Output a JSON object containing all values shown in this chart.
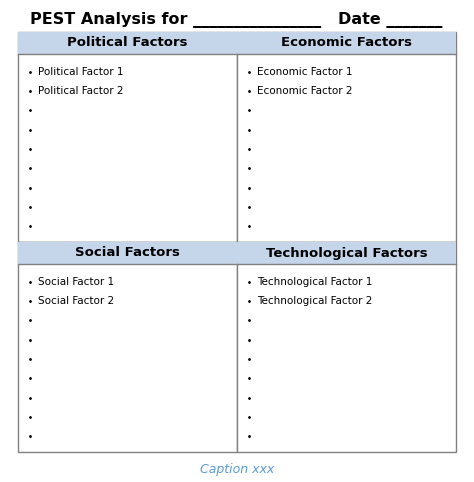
{
  "title_parts": [
    "PEST Analysis for ",
    "________________",
    "  Date ",
    "_______"
  ],
  "caption": "Caption xxx",
  "caption_color": "#5B9BD5",
  "header_bg_color": "#C5D5EA",
  "header_text_color": "#000000",
  "cell_bg_color": "#FFFFFF",
  "border_color": "#808080",
  "quadrants": [
    {
      "header": "Political Factors",
      "items": [
        "Political Factor 1",
        "Political Factor 2",
        "",
        "",
        "",
        "",
        "",
        "",
        ""
      ]
    },
    {
      "header": "Economic Factors",
      "items": [
        "Economic Factor 1",
        "Economic Factor 2",
        "",
        "",
        "",
        "",
        "",
        "",
        ""
      ]
    },
    {
      "header": "Social Factors",
      "items": [
        "Social Factor 1",
        "Social Factor 2",
        "",
        "",
        "",
        "",
        "",
        "",
        ""
      ]
    },
    {
      "header": "Technological Factors",
      "items": [
        "Technological Factor 1",
        "Technological Factor 2",
        "",
        "",
        "",
        "",
        "",
        "",
        ""
      ]
    }
  ],
  "title_fontsize": 11.5,
  "header_fontsize": 9.5,
  "item_fontsize": 7.5,
  "caption_fontsize": 9,
  "fig_width": 4.74,
  "fig_height": 4.82,
  "dpi": 100
}
